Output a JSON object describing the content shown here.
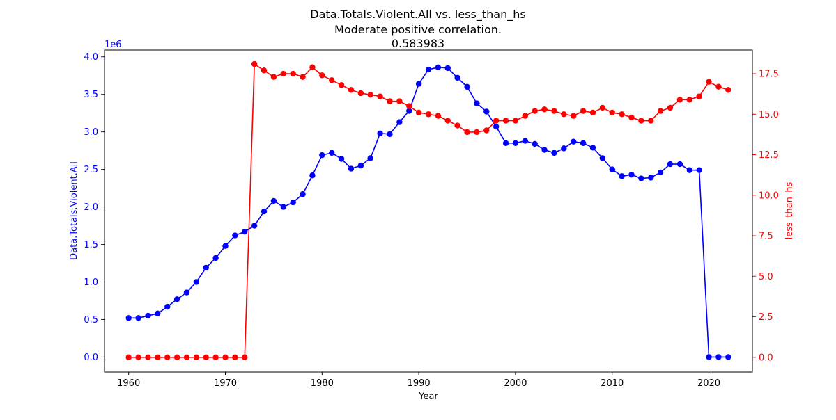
{
  "chart_data": {
    "type": "line",
    "title": "Data.Totals.Violent.All vs. less_than_hs",
    "subtitle": "Moderate positive correlation.",
    "correlation": "0.583983",
    "xlabel": "Year",
    "ylabel_left": "Data.Totals.Violent.All",
    "ylabel_right": "less_than_hs",
    "left_axis_offset_label": "1e6",
    "xlim": [
      1957.5,
      2024.5
    ],
    "ylim_left": [
      -0.2,
      4.09
    ],
    "ylim_right": [
      -0.91,
      18.96
    ],
    "x_ticks": [
      1960,
      1970,
      1980,
      1990,
      2000,
      2010,
      2020
    ],
    "y_ticks_left": [
      0.0,
      0.5,
      1.0,
      1.5,
      2.0,
      2.5,
      3.0,
      3.5,
      4.0
    ],
    "y_ticks_right": [
      0.0,
      2.5,
      5.0,
      7.5,
      10.0,
      12.5,
      15.0,
      17.5
    ],
    "colors": {
      "left": "#0000ff",
      "right": "#ff0000",
      "axis": "#000000"
    },
    "x": [
      1960,
      1961,
      1962,
      1963,
      1964,
      1965,
      1966,
      1967,
      1968,
      1969,
      1970,
      1971,
      1972,
      1973,
      1974,
      1975,
      1976,
      1977,
      1978,
      1979,
      1980,
      1981,
      1982,
      1983,
      1984,
      1985,
      1986,
      1987,
      1988,
      1989,
      1990,
      1991,
      1992,
      1993,
      1994,
      1995,
      1996,
      1997,
      1998,
      1999,
      2000,
      2001,
      2002,
      2003,
      2004,
      2005,
      2006,
      2007,
      2008,
      2009,
      2010,
      2011,
      2012,
      2013,
      2014,
      2015,
      2016,
      2017,
      2018,
      2019,
      2020,
      2021,
      2022
    ],
    "series": [
      {
        "name": "Data.Totals.Violent.All",
        "axis": "left",
        "scale": "1e6",
        "values": [
          0.52,
          0.52,
          0.55,
          0.58,
          0.67,
          0.77,
          0.86,
          1.0,
          1.19,
          1.32,
          1.48,
          1.62,
          1.67,
          1.75,
          1.94,
          2.08,
          2.0,
          2.06,
          2.17,
          2.42,
          2.69,
          2.72,
          2.64,
          2.51,
          2.55,
          2.65,
          2.98,
          2.97,
          3.13,
          3.28,
          3.64,
          3.83,
          3.86,
          3.85,
          3.72,
          3.6,
          3.38,
          3.27,
          3.07,
          2.85,
          2.85,
          2.88,
          2.84,
          2.76,
          2.72,
          2.78,
          2.87,
          2.85,
          2.79,
          2.65,
          2.5,
          2.41,
          2.43,
          2.38,
          2.39,
          2.46,
          2.57,
          2.57,
          2.49,
          2.49,
          0.0,
          0.0,
          0.0
        ]
      },
      {
        "name": "less_than_hs",
        "axis": "right",
        "values": [
          0,
          0,
          0,
          0,
          0,
          0,
          0,
          0,
          0,
          0,
          0,
          0,
          0,
          18.1,
          17.7,
          17.3,
          17.5,
          17.5,
          17.3,
          17.9,
          17.4,
          17.1,
          16.8,
          16.5,
          16.3,
          16.2,
          16.1,
          15.8,
          15.8,
          15.5,
          15.1,
          15.0,
          14.9,
          14.6,
          14.3,
          13.9,
          13.9,
          14.0,
          14.6,
          14.6,
          14.6,
          14.9,
          15.2,
          15.3,
          15.2,
          15.0,
          14.9,
          15.2,
          15.1,
          15.4,
          15.1,
          15.0,
          14.8,
          14.6,
          14.6,
          15.2,
          15.4,
          15.9,
          15.9,
          16.1,
          17.0,
          16.7,
          16.5
        ]
      }
    ]
  }
}
